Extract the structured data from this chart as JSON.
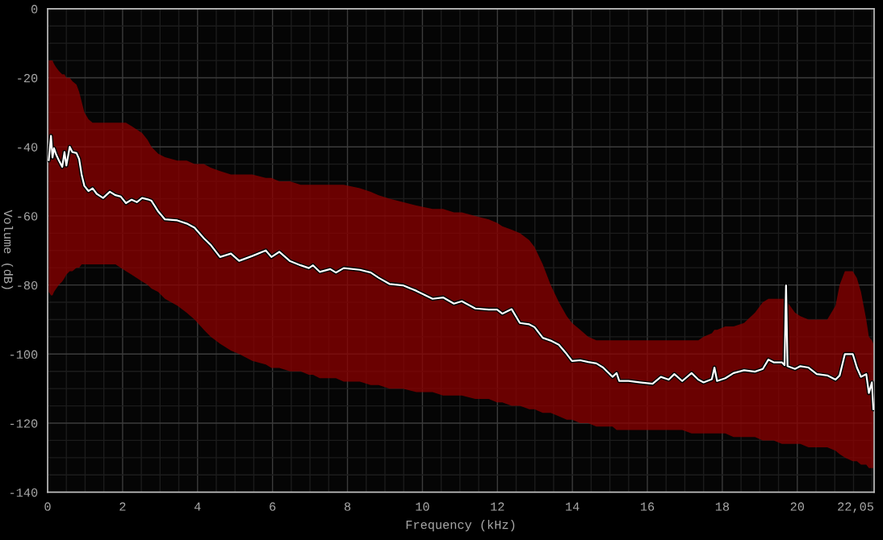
{
  "chart_data": {
    "type": "line",
    "xlabel": "Frequency (kHz)",
    "ylabel": "Volume (dB)",
    "xlim": [
      0,
      22.05
    ],
    "xticks": [
      0,
      2,
      4,
      6,
      8,
      10,
      12,
      14,
      16,
      18,
      20,
      {
        "value": 22.05,
        "label": "22,05"
      }
    ],
    "ylim": [
      -140,
      0
    ],
    "yticks": [
      0,
      -20,
      -40,
      -60,
      -80,
      -100,
      -120,
      -140
    ],
    "grid": true,
    "series": [
      {
        "color": "#ffffff",
        "x": [
          0.03,
          0.09,
          0.13,
          0.17,
          0.23,
          0.3,
          0.39,
          0.45,
          0.5,
          0.59,
          0.66,
          0.77,
          0.84,
          0.91,
          0.98,
          1.09,
          1.2,
          1.31,
          1.48,
          1.66,
          1.81,
          1.95,
          2.09,
          2.24,
          2.38,
          2.52,
          2.67,
          2.77,
          2.95,
          3.13,
          3.46,
          3.71,
          3.92,
          4.17,
          4.35,
          4.6,
          4.89,
          5.11,
          5.46,
          5.82,
          5.97,
          6.18,
          6.47,
          6.75,
          6.97,
          7.08,
          7.26,
          7.54,
          7.69,
          7.9,
          8.33,
          8.62,
          8.83,
          9.12,
          9.48,
          9.84,
          10.27,
          10.55,
          10.84,
          11.05,
          11.41,
          11.77,
          11.99,
          12.13,
          12.38,
          12.6,
          12.85,
          12.99,
          13.21,
          13.42,
          13.64,
          13.85,
          13.99,
          14.21,
          14.42,
          14.64,
          14.82,
          15.07,
          15.18,
          15.25,
          15.5,
          15.79,
          16.14,
          16.36,
          16.57,
          16.72,
          16.93,
          17.18,
          17.36,
          17.5,
          17.72,
          17.79,
          17.86,
          18.08,
          18.3,
          18.58,
          18.87,
          19.08,
          19.23,
          19.37,
          19.59,
          19.66,
          19.7,
          19.74,
          19.94,
          20.08,
          20.3,
          20.52,
          20.8,
          21.02,
          21.13,
          21.27,
          21.48,
          21.59,
          21.7,
          21.84,
          21.91,
          21.99,
          22.03
        ],
        "values": [
          -43.9,
          -36.8,
          -43.1,
          -40.4,
          -42.3,
          -43.9,
          -45.8,
          -41.5,
          -45.4,
          -40.0,
          -41.5,
          -41.8,
          -43.5,
          -48.2,
          -51.3,
          -52.8,
          -52.0,
          -53.6,
          -54.8,
          -53.0,
          -54.0,
          -54.4,
          -56.3,
          -55.3,
          -56.0,
          -54.8,
          -55.2,
          -55.6,
          -58.7,
          -61.0,
          -61.3,
          -62.2,
          -63.4,
          -66.5,
          -68.4,
          -71.9,
          -70.9,
          -73.0,
          -71.6,
          -70.0,
          -71.9,
          -70.4,
          -73.1,
          -74.3,
          -75.1,
          -74.3,
          -76.2,
          -75.4,
          -76.4,
          -75.1,
          -75.6,
          -76.4,
          -77.9,
          -79.7,
          -80.1,
          -81.7,
          -84.0,
          -83.6,
          -85.4,
          -84.7,
          -86.8,
          -87.1,
          -87.1,
          -88.3,
          -87.0,
          -91.0,
          -91.4,
          -92.2,
          -95.3,
          -96.1,
          -97.3,
          -100.0,
          -102.0,
          -101.8,
          -102.3,
          -102.7,
          -103.9,
          -106.6,
          -105.5,
          -107.8,
          -107.8,
          -108.2,
          -108.6,
          -106.6,
          -107.4,
          -105.8,
          -107.8,
          -105.5,
          -107.4,
          -108.2,
          -107.3,
          -103.9,
          -107.8,
          -107.0,
          -105.5,
          -104.7,
          -105.1,
          -104.3,
          -101.6,
          -102.4,
          -102.4,
          -103.2,
          -80.1,
          -103.5,
          -104.3,
          -103.5,
          -103.9,
          -105.8,
          -106.2,
          -107.4,
          -106.2,
          -100.0,
          -100.0,
          -103.9,
          -106.6,
          -105.8,
          -111.3,
          -108.2,
          -116.0
        ],
        "lower": [
          -82,
          -83,
          -83,
          -82,
          -81,
          -80,
          -79,
          -78,
          -77,
          -76,
          -76,
          -75,
          -75,
          -74,
          -74,
          -74,
          -74,
          -74,
          -74,
          -74,
          -74,
          -75,
          -76,
          -77,
          -78,
          -79,
          -80,
          -81,
          -82,
          -84,
          -86,
          -88,
          -90,
          -93,
          -95,
          -97,
          -99,
          -100,
          -102,
          -103,
          -104,
          -104,
          -105,
          -105,
          -106,
          -106,
          -107,
          -107,
          -107,
          -108,
          -108,
          -109,
          -109,
          -110,
          -110,
          -111,
          -111,
          -112,
          -112,
          -112,
          -113,
          -113,
          -114,
          -114,
          -115,
          -115,
          -116,
          -116,
          -117,
          -117,
          -118,
          -119,
          -119,
          -120,
          -120,
          -121,
          -121,
          -121,
          -122,
          -122,
          -122,
          -122,
          -122,
          -122,
          -122,
          -122,
          -122,
          -123,
          -123,
          -123,
          -123,
          -123,
          -123,
          -123,
          -124,
          -124,
          -124,
          -125,
          -125,
          -125,
          -126,
          -126,
          -126,
          -126,
          -126,
          -126,
          -127,
          -127,
          -127,
          -128,
          -129,
          -130,
          -131,
          -131,
          -132,
          -132,
          -133,
          -133,
          -133
        ],
        "upper": [
          -15,
          -15,
          -15,
          -16,
          -17,
          -18,
          -19,
          -19,
          -20,
          -20,
          -21,
          -22,
          -24,
          -27,
          -30,
          -32,
          -33,
          -33,
          -33,
          -33,
          -33,
          -33,
          -33,
          -34,
          -35,
          -36,
          -38,
          -40,
          -42,
          -43,
          -44,
          -44,
          -45,
          -45,
          -46,
          -47,
          -48,
          -48,
          -48,
          -49,
          -49,
          -50,
          -50,
          -51,
          -51,
          -51,
          -51,
          -51,
          -51,
          -51,
          -52,
          -53,
          -54,
          -55,
          -56,
          -57,
          -58,
          -58,
          -59,
          -59,
          -60,
          -61,
          -62,
          -63,
          -64,
          -65,
          -67,
          -69,
          -74,
          -80,
          -85,
          -89,
          -91,
          -93,
          -95,
          -96,
          -96,
          -96,
          -96,
          -96,
          -96,
          -96,
          -96,
          -96,
          -96,
          -96,
          -96,
          -96,
          -96,
          -95,
          -94,
          -93,
          -93,
          -92,
          -92,
          -91,
          -88,
          -85,
          -84,
          -84,
          -84,
          -84,
          -84,
          -85,
          -88,
          -89,
          -90,
          -90,
          -90,
          -86,
          -80,
          -76,
          -76,
          -78,
          -82,
          -90,
          -95,
          -96,
          -97
        ]
      }
    ]
  }
}
